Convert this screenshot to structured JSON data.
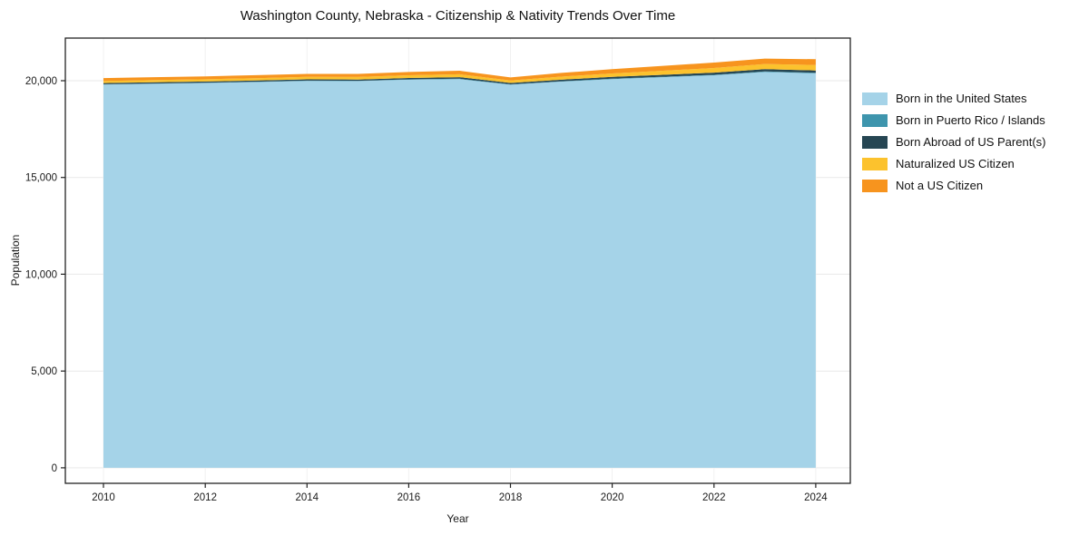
{
  "chart_data": {
    "type": "area",
    "stacked": true,
    "title": "Washington County, Nebraska - Citizenship & Nativity Trends Over Time",
    "xlabel": "Year",
    "ylabel": "Population",
    "x": [
      2010,
      2011,
      2012,
      2013,
      2014,
      2015,
      2016,
      2017,
      2018,
      2019,
      2020,
      2021,
      2022,
      2023,
      2024
    ],
    "series": [
      {
        "name": "Born in the United States",
        "color": "#a5d3e8",
        "values": [
          19800,
          19840,
          19880,
          19930,
          19990,
          19980,
          20050,
          20080,
          19790,
          19950,
          20080,
          20180,
          20280,
          20450,
          20380
        ]
      },
      {
        "name": "Born in Puerto Rico / Islands",
        "color": "#3e95ad",
        "values": [
          15,
          15,
          15,
          15,
          15,
          15,
          20,
          20,
          20,
          20,
          25,
          25,
          25,
          30,
          30
        ]
      },
      {
        "name": "Born Abroad of US Parent(s)",
        "color": "#264653",
        "values": [
          60,
          60,
          60,
          65,
          65,
          65,
          70,
          80,
          70,
          80,
          90,
          100,
          110,
          120,
          120
        ]
      },
      {
        "name": "Naturalized US Citizen",
        "color": "#fcc22d",
        "values": [
          110,
          115,
          120,
          120,
          125,
          130,
          140,
          150,
          130,
          160,
          180,
          210,
          240,
          260,
          280
        ]
      },
      {
        "name": "Not a US Citizen",
        "color": "#f7941e",
        "values": [
          150,
          150,
          150,
          155,
          155,
          160,
          170,
          185,
          155,
          190,
          220,
          250,
          280,
          280,
          300
        ]
      }
    ],
    "xticks": [
      2010,
      2012,
      2014,
      2016,
      2018,
      2020,
      2022,
      2024
    ],
    "yticks": [
      0,
      5000,
      10000,
      15000,
      20000
    ],
    "xlim": [
      2009.25,
      2024.68
    ],
    "ylim": [
      -800,
      22200
    ],
    "grid": true,
    "legend_position": "right"
  }
}
